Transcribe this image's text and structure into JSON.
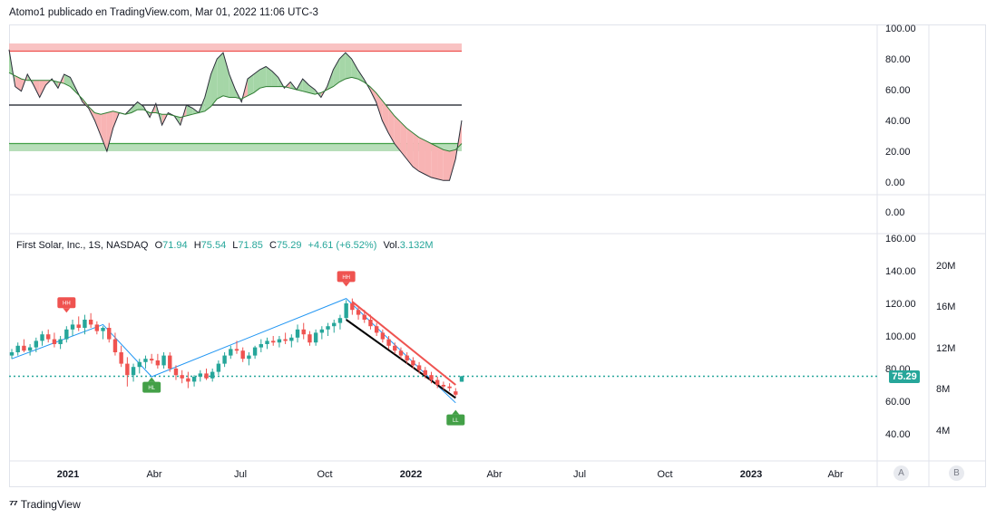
{
  "header": {
    "publisher": "Atomo1 publicado en TradingView.com, Mar 01, 2022 11:06 UTC-3"
  },
  "legend": {
    "symbol": "First Solar, Inc., 1S, NASDAQ",
    "open_label": "O",
    "open": "71.94",
    "high_label": "H",
    "high": "75.54",
    "low_label": "L",
    "low": "71.85",
    "close_label": "C",
    "close": "75.29",
    "change": "+4.61 (+6.52%)",
    "vol_label": "Vol.",
    "vol": "3.132M"
  },
  "price_badge": "75.29",
  "footer": {
    "brand": "TradingView"
  },
  "axis_buttons": {
    "a": "A",
    "b": "B"
  },
  "colors": {
    "up": "#26a69a",
    "down": "#ef5350",
    "zigzag": "#2196f3",
    "osc_up": "#a5d6a7",
    "osc_down": "#f8b4b4",
    "hh_badge": "#ef5350",
    "hl_badge": "#43a047"
  },
  "chart_data": [
    {
      "type": "area",
      "pane": "oscillator",
      "y_ticks": [
        "100.00",
        "80.00",
        "60.00",
        "40.00",
        "20.00",
        "0.00"
      ],
      "ylim": [
        0,
        100
      ],
      "levels": [
        85,
        50,
        25
      ],
      "bands": [
        {
          "from": 85,
          "to": 90,
          "color": "#f8b4b4"
        },
        {
          "from": 20,
          "to": 25,
          "color": "#a5d6a7"
        }
      ],
      "fast": [
        86,
        62,
        59,
        70,
        63,
        55,
        63,
        67,
        61,
        70,
        68,
        60,
        52,
        48,
        40,
        30,
        20,
        35,
        45,
        44,
        48,
        52,
        49,
        42,
        51,
        37,
        45,
        43,
        37,
        50,
        48,
        45,
        55,
        70,
        80,
        84,
        70,
        60,
        52,
        67,
        70,
        73,
        75,
        72,
        68,
        61,
        65,
        60,
        67,
        63,
        60,
        55,
        62,
        73,
        80,
        84,
        80,
        73,
        67,
        60,
        52,
        40,
        32,
        25,
        20,
        15,
        10,
        7,
        5,
        3,
        2,
        1,
        1,
        15,
        40
      ],
      "slow": [
        71,
        69,
        67,
        66,
        66,
        66,
        66,
        66,
        65,
        64,
        62,
        58,
        54,
        49,
        45,
        44,
        45,
        46,
        45,
        44,
        45,
        47,
        47,
        45,
        45,
        44,
        44,
        43,
        42,
        43,
        44,
        45,
        46,
        49,
        54,
        56,
        55,
        55,
        54,
        56,
        58,
        61,
        62,
        62,
        62,
        62,
        61,
        60,
        59,
        58,
        57,
        58,
        60,
        62,
        65,
        67,
        68,
        67,
        65,
        62,
        58,
        53,
        48,
        43,
        39,
        35,
        32,
        29,
        27,
        25,
        23,
        21,
        20,
        21,
        25
      ]
    },
    {
      "type": "bar",
      "pane": "price",
      "title": "First Solar, Inc., 1S, NASDAQ",
      "x_ticks": [
        "2021",
        "Abr",
        "Jul",
        "Oct",
        "2022",
        "Abr",
        "Jul",
        "Oct",
        "2023",
        "Abr"
      ],
      "y_ticks": [
        "160.00",
        "140.00",
        "120.00",
        "100.00",
        "80.00",
        "60.00",
        "40.00"
      ],
      "vol_ticks": [
        "20M",
        "16M",
        "12M",
        "8M",
        "4M"
      ],
      "ylim": [
        30,
        160
      ],
      "last_close": 75.29,
      "candles": [
        [
          88,
          92,
          86,
          90
        ],
        [
          90,
          96,
          88,
          94
        ],
        [
          94,
          98,
          90,
          91
        ],
        [
          91,
          95,
          88,
          93
        ],
        [
          93,
          99,
          90,
          97
        ],
        [
          97,
          103,
          94,
          101
        ],
        [
          101,
          104,
          96,
          98
        ],
        [
          98,
          102,
          93,
          95
        ],
        [
          95,
          100,
          92,
          98
        ],
        [
          98,
          106,
          96,
          104
        ],
        [
          104,
          110,
          100,
          107
        ],
        [
          107,
          112,
          103,
          105
        ],
        [
          105,
          113,
          101,
          110
        ],
        [
          110,
          114,
          105,
          107
        ],
        [
          107,
          109,
          101,
          103
        ],
        [
          103,
          106,
          98,
          105
        ],
        [
          105,
          108,
          96,
          98
        ],
        [
          98,
          102,
          88,
          90
        ],
        [
          90,
          94,
          81,
          83
        ],
        [
          83,
          87,
          69,
          76
        ],
        [
          76,
          83,
          72,
          81
        ],
        [
          81,
          86,
          77,
          84
        ],
        [
          84,
          88,
          80,
          86
        ],
        [
          86,
          89,
          83,
          85
        ],
        [
          85,
          89,
          80,
          82
        ],
        [
          82,
          90,
          80,
          88
        ],
        [
          88,
          90,
          78,
          80
        ],
        [
          80,
          82,
          73,
          76
        ],
        [
          76,
          79,
          71,
          74
        ],
        [
          74,
          78,
          68,
          72
        ],
        [
          72,
          76,
          69,
          75
        ],
        [
          75,
          79,
          72,
          77
        ],
        [
          77,
          80,
          73,
          74
        ],
        [
          74,
          80,
          72,
          78
        ],
        [
          78,
          85,
          76,
          83
        ],
        [
          83,
          90,
          81,
          88
        ],
        [
          88,
          94,
          86,
          92
        ],
        [
          92,
          97,
          89,
          91
        ],
        [
          91,
          93,
          84,
          86
        ],
        [
          86,
          90,
          82,
          88
        ],
        [
          88,
          94,
          86,
          93
        ],
        [
          93,
          98,
          90,
          95
        ],
        [
          95,
          99,
          92,
          97
        ],
        [
          97,
          100,
          94,
          96
        ],
        [
          96,
          100,
          93,
          98
        ],
        [
          98,
          102,
          95,
          97
        ],
        [
          97,
          101,
          93,
          99
        ],
        [
          99,
          107,
          96,
          104
        ],
        [
          104,
          108,
          98,
          101
        ],
        [
          101,
          103,
          94,
          96
        ],
        [
          96,
          104,
          94,
          102
        ],
        [
          102,
          106,
          98,
          104
        ],
        [
          104,
          108,
          100,
          106
        ],
        [
          106,
          110,
          102,
          108
        ],
        [
          108,
          113,
          104,
          111
        ],
        [
          111,
          122,
          110,
          120
        ],
        [
          120,
          123,
          113,
          116
        ],
        [
          116,
          118,
          110,
          113
        ],
        [
          113,
          116,
          108,
          110
        ],
        [
          110,
          113,
          104,
          106
        ],
        [
          106,
          108,
          100,
          102
        ],
        [
          102,
          104,
          96,
          98
        ],
        [
          98,
          100,
          92,
          94
        ],
        [
          94,
          96,
          89,
          91
        ],
        [
          91,
          93,
          86,
          88
        ],
        [
          88,
          90,
          83,
          85
        ],
        [
          85,
          87,
          80,
          82
        ],
        [
          82,
          84,
          77,
          79
        ],
        [
          79,
          81,
          74,
          76
        ],
        [
          76,
          78,
          71,
          73
        ],
        [
          73,
          75,
          68,
          70
        ],
        [
          70,
          72,
          67,
          69
        ],
        [
          69,
          71,
          66,
          68
        ],
        [
          66,
          68,
          63,
          64
        ],
        [
          71.94,
          75.54,
          71.85,
          75.29
        ]
      ],
      "markers": [
        {
          "label": "HH",
          "index": 9
        },
        {
          "label": "HL",
          "index": 23
        },
        {
          "label": "HH",
          "index": 55
        },
        {
          "label": "LL",
          "index": 73
        }
      ]
    }
  ]
}
